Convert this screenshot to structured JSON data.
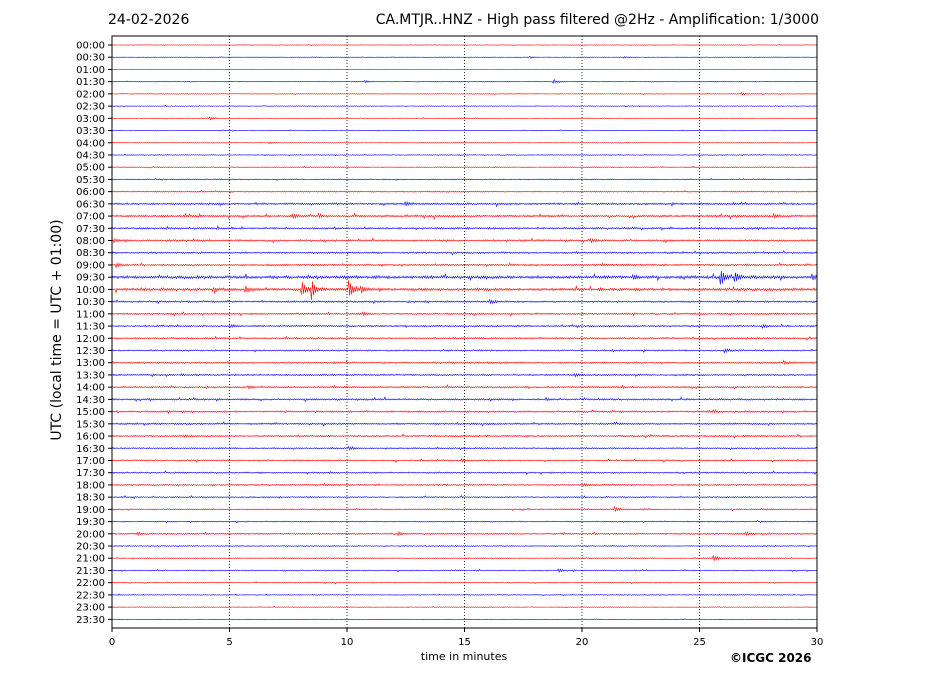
{
  "header": {
    "date": "24-02-2026",
    "title": "CA.MTJR..HNZ - High pass filtered @2Hz - Amplification: 1/3000"
  },
  "credit": "©ICGC 2026",
  "colors": {
    "red_trace": "#ff0000",
    "blue_trace": "#0000ff"
  },
  "chart_data": {
    "type": "line",
    "xlabel": "time in minutes",
    "ylabel": "UTC (local time = UTC + 01:00)",
    "xlim": [
      0,
      30
    ],
    "x_ticks": [
      "0",
      "5",
      "10",
      "15",
      "20",
      "25",
      "30"
    ],
    "grid": "vertical dotted every 5 minutes",
    "rows": [
      "00:00",
      "00:30",
      "01:00",
      "01:30",
      "02:00",
      "02:30",
      "03:00",
      "03:30",
      "04:00",
      "04:30",
      "05:00",
      "05:30",
      "06:00",
      "06:30",
      "07:00",
      "07:30",
      "08:00",
      "08:30",
      "09:00",
      "09:30",
      "10:00",
      "10:30",
      "11:00",
      "11:30",
      "12:00",
      "12:30",
      "13:00",
      "13:30",
      "14:00",
      "14:30",
      "15:00",
      "15:30",
      "16:00",
      "16:30",
      "17:00",
      "17:30",
      "18:00",
      "18:30",
      "19:00",
      "19:30",
      "20:00",
      "20:30",
      "21:00",
      "21:30",
      "22:00",
      "22:30",
      "23:00",
      "23:30"
    ],
    "trace_colors": [
      "red",
      "blue",
      "red",
      "blue",
      "red",
      "blue",
      "red",
      "blue",
      "red",
      "blue",
      "red",
      "blue",
      "red",
      "blue",
      "red",
      "blue",
      "red",
      "blue",
      "red",
      "blue",
      "red",
      "blue",
      "red",
      "blue",
      "red",
      "blue",
      "red",
      "blue",
      "red",
      "blue",
      "red",
      "blue",
      "red",
      "blue",
      "red",
      "blue",
      "red",
      "blue",
      "red",
      "blue",
      "red",
      "blue",
      "red",
      "blue",
      "red",
      "blue",
      "red",
      "blue"
    ],
    "noise_level": [
      0.2,
      0.2,
      0.2,
      0.3,
      0.3,
      0.3,
      0.3,
      0.3,
      0.3,
      0.4,
      0.4,
      0.5,
      0.6,
      0.9,
      1.0,
      0.9,
      0.9,
      0.8,
      0.9,
      1.4,
      1.3,
      0.8,
      0.8,
      0.8,
      0.8,
      0.7,
      0.8,
      0.8,
      0.8,
      0.8,
      0.8,
      0.8,
      0.8,
      0.7,
      0.7,
      0.7,
      0.7,
      0.6,
      0.6,
      0.5,
      0.7,
      0.5,
      0.5,
      0.5,
      0.4,
      0.4,
      0.3,
      0.2
    ],
    "events": [
      {
        "row": "00:30",
        "minute": 17.8,
        "amp": 0.8
      },
      {
        "row": "00:30",
        "minute": 21.8,
        "amp": 0.8
      },
      {
        "row": "01:30",
        "minute": 10.8,
        "amp": 1.0
      },
      {
        "row": "01:30",
        "minute": 18.8,
        "amp": 2.0
      },
      {
        "row": "02:00",
        "minute": 26.8,
        "amp": 1.5
      },
      {
        "row": "03:00",
        "minute": 4.2,
        "amp": 1.4
      },
      {
        "row": "04:00",
        "minute": 6.7,
        "amp": 1.2
      },
      {
        "row": "06:30",
        "minute": 12.5,
        "amp": 2.0
      },
      {
        "row": "07:00",
        "minute": 7.7,
        "amp": 2.0
      },
      {
        "row": "07:00",
        "minute": 8.8,
        "amp": 1.8
      },
      {
        "row": "07:00",
        "minute": 28.2,
        "amp": 1.6
      },
      {
        "row": "08:00",
        "minute": 0.1,
        "amp": 1.8
      },
      {
        "row": "08:00",
        "minute": 20.4,
        "amp": 1.6
      },
      {
        "row": "09:00",
        "minute": 0.2,
        "amp": 1.8
      },
      {
        "row": "09:30",
        "minute": 22.2,
        "amp": 2.2
      },
      {
        "row": "09:30",
        "minute": 25.9,
        "amp": 8.0
      },
      {
        "row": "09:30",
        "minute": 26.5,
        "amp": 5.0
      },
      {
        "row": "09:30",
        "minute": 29.8,
        "amp": 3.0
      },
      {
        "row": "10:00",
        "minute": 4.3,
        "amp": 2.0
      },
      {
        "row": "10:00",
        "minute": 5.7,
        "amp": 3.0
      },
      {
        "row": "10:00",
        "minute": 8.1,
        "amp": 8.0
      },
      {
        "row": "10:00",
        "minute": 8.5,
        "amp": 10.0
      },
      {
        "row": "10:00",
        "minute": 10.1,
        "amp": 9.0
      },
      {
        "row": "10:00",
        "minute": 10.6,
        "amp": 3.0
      },
      {
        "row": "10:30",
        "minute": 16.1,
        "amp": 2.0
      },
      {
        "row": "11:00",
        "minute": 10.7,
        "amp": 1.5
      },
      {
        "row": "11:30",
        "minute": 5.1,
        "amp": 1.5
      },
      {
        "row": "11:30",
        "minute": 27.7,
        "amp": 1.8
      },
      {
        "row": "12:30",
        "minute": 26.1,
        "amp": 1.6
      },
      {
        "row": "13:00",
        "minute": 28.6,
        "amp": 2.0
      },
      {
        "row": "13:30",
        "minute": 19.7,
        "amp": 1.4
      },
      {
        "row": "14:00",
        "minute": 5.8,
        "amp": 2.0
      },
      {
        "row": "14:30",
        "minute": 18.5,
        "amp": 1.2
      },
      {
        "row": "15:00",
        "minute": 25.6,
        "amp": 1.4
      },
      {
        "row": "16:00",
        "minute": 3.1,
        "amp": 1.2
      },
      {
        "row": "16:30",
        "minute": 10.1,
        "amp": 1.5
      },
      {
        "row": "17:00",
        "minute": 14.9,
        "amp": 1.2
      },
      {
        "row": "18:00",
        "minute": 20.1,
        "amp": 1.2
      },
      {
        "row": "19:00",
        "minute": 21.4,
        "amp": 2.5
      },
      {
        "row": "20:00",
        "minute": 1.1,
        "amp": 1.5
      },
      {
        "row": "20:00",
        "minute": 12.2,
        "amp": 1.5
      },
      {
        "row": "20:00",
        "minute": 27.0,
        "amp": 1.4
      },
      {
        "row": "21:00",
        "minute": 25.6,
        "amp": 3.5
      },
      {
        "row": "21:30",
        "minute": 19.0,
        "amp": 1.8
      }
    ]
  }
}
